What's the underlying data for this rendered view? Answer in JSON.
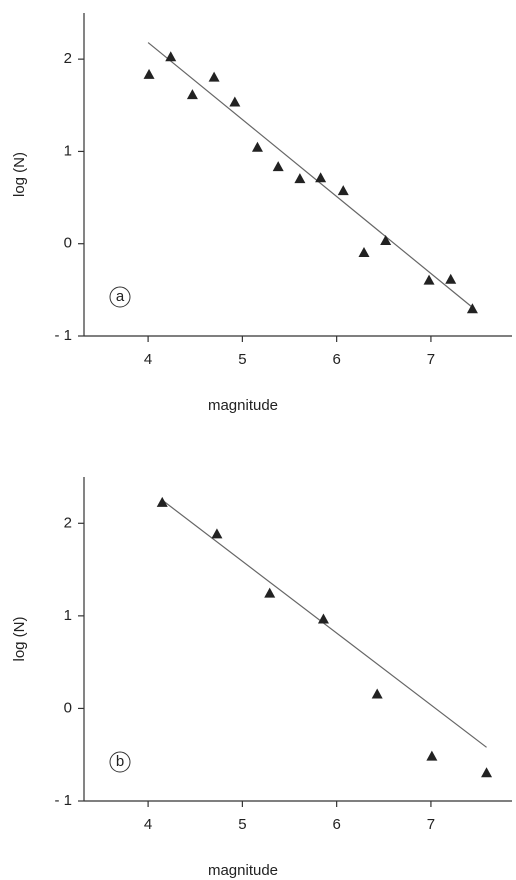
{
  "chart_data": [
    {
      "type": "scatter",
      "panel_label": "a",
      "xlabel": "magnitude",
      "ylabel": "log (N)",
      "xlim": [
        3.32,
        7.86
      ],
      "ylim": [
        -1,
        2.5
      ],
      "xticks": [
        4,
        5,
        6,
        7
      ],
      "yticks": [
        {
          "value": -1,
          "label": "- 1"
        },
        0,
        1,
        2
      ],
      "color": "#222",
      "x": [
        4.01,
        4.24,
        4.47,
        4.7,
        4.92,
        5.16,
        5.38,
        5.61,
        5.83,
        6.07,
        6.29,
        6.52,
        6.98,
        7.21,
        7.44
      ],
      "values": [
        1.83,
        2.02,
        1.61,
        1.8,
        1.53,
        1.04,
        0.83,
        0.7,
        0.71,
        0.57,
        -0.1,
        0.03,
        -0.4,
        -0.39,
        -0.71
      ],
      "fit": {
        "x": [
          4.0,
          7.44
        ],
        "values": [
          2.18,
          -0.69
        ],
        "color": "#666"
      }
    },
    {
      "type": "scatter",
      "panel_label": "b",
      "xlabel": "magnitude",
      "ylabel": "log (N)",
      "xlim": [
        3.32,
        7.86
      ],
      "ylim": [
        -1,
        2.5
      ],
      "xticks": [
        4,
        5,
        6,
        7
      ],
      "yticks": [
        {
          "value": -1,
          "label": "- 1"
        },
        0,
        1,
        2
      ],
      "color": "#222",
      "x": [
        4.15,
        4.73,
        5.29,
        5.86,
        6.43,
        7.01,
        7.59
      ],
      "values": [
        2.22,
        1.88,
        1.24,
        0.96,
        0.15,
        -0.52,
        -0.7
      ],
      "fit": {
        "x": [
          4.15,
          7.59
        ],
        "values": [
          2.25,
          -0.42
        ],
        "color": "#666"
      }
    }
  ]
}
